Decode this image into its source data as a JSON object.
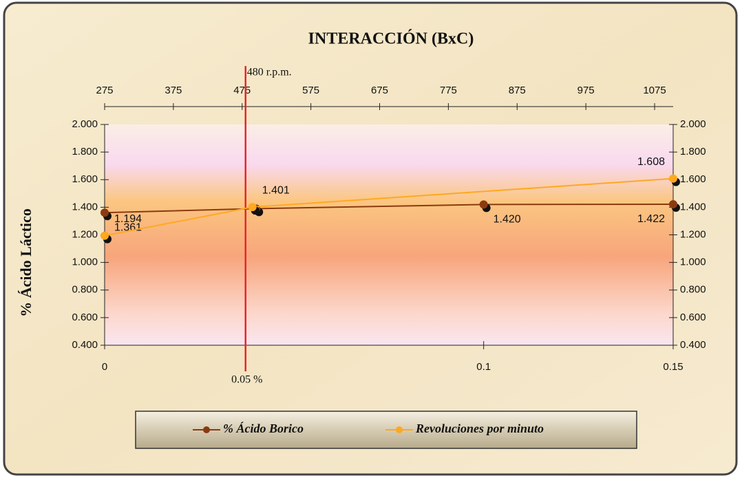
{
  "chart_data": {
    "type": "line",
    "title": "INTERACCIÓN (BxC)",
    "y_label": "% Ácido Láctico",
    "xlim": [
      0,
      0.15
    ],
    "xticks": [
      0,
      0.1,
      0.15
    ],
    "x2lim": [
      275,
      1102
    ],
    "x2ticks": [
      275,
      375,
      475,
      575,
      675,
      775,
      875,
      975,
      1075
    ],
    "ylim": [
      0.4,
      2.0
    ],
    "yticks": [
      {
        "value": 0.4,
        "label": "0.400"
      },
      {
        "value": 0.6,
        "label": "0.600"
      },
      {
        "value": 0.8,
        "label": "0.800"
      },
      {
        "value": 1.0,
        "label": "1.000"
      },
      {
        "value": 1.2,
        "label": "1.200"
      },
      {
        "value": 1.4,
        "label": "1.400"
      },
      {
        "value": 1.6,
        "label": "1.600"
      },
      {
        "value": 1.8,
        "label": "1.800"
      },
      {
        "value": 2.0,
        "label": "2.000"
      }
    ],
    "y2lim": [
      0.4,
      2.0
    ],
    "y2ticks": [
      {
        "value": 0.4,
        "label": "0.400"
      },
      {
        "value": 0.6,
        "label": "0.600"
      },
      {
        "value": 0.8,
        "label": "0.800"
      },
      {
        "value": 1.0,
        "label": "1.000"
      },
      {
        "value": 1.2,
        "label": "1.200"
      },
      {
        "value": 1.4,
        "label": "1.400"
      },
      {
        "value": 1.6,
        "label": "1.600"
      },
      {
        "value": 1.8,
        "label": "1.800"
      },
      {
        "value": 2.0,
        "label": "2.000"
      }
    ],
    "series": [
      {
        "name": "% Ácido Borico",
        "color": "#8b3a10",
        "x": [
          0,
          0.04,
          0.1,
          0.15
        ],
        "values": [
          1.361,
          1.39,
          1.42,
          1.422
        ],
        "value_labels": [
          "1.361",
          null,
          "1.420",
          "1.422"
        ]
      },
      {
        "name": "Revoluciones por minuto",
        "color": "#ffa820",
        "axis": "x2",
        "x": [
          275,
          490,
          1102
        ],
        "values": [
          1.194,
          1.401,
          1.608
        ],
        "value_labels": [
          "1.194",
          "1.401",
          "1.608"
        ]
      }
    ],
    "annotations": [
      {
        "x": 480,
        "axis": "x2",
        "top_label": "480 r.p.m.",
        "bottom_label": "0.05 %",
        "color": "#e8262a"
      }
    ],
    "legend": "bottom"
  }
}
